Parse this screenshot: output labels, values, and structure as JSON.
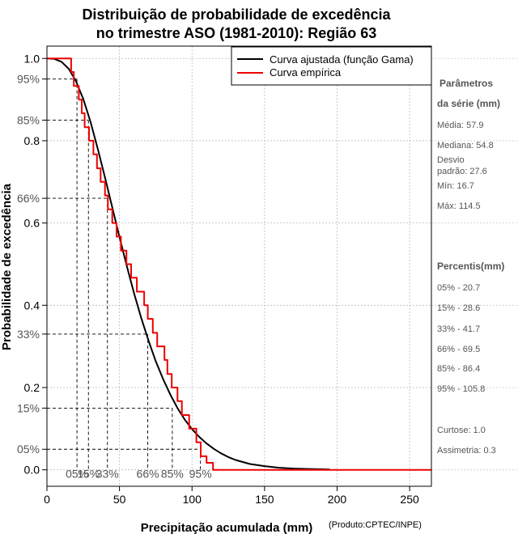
{
  "chart_data": {
    "type": "line",
    "title_line1": "Distribuição de probabilidade de excedência",
    "title_line2": "no trimestre ASO (1981-2010): Região 63",
    "xlabel": "Precipitação acumulada (mm)",
    "ylabel": "Probabilidade de excedência",
    "credit": "(Produto:CPTEC/INPE)",
    "xlim": [
      0,
      265
    ],
    "ylim": [
      -0.04,
      1.03
    ],
    "x_ticks": [
      0,
      50,
      100,
      150,
      200,
      250
    ],
    "x_tick_labels": [
      "0",
      "50",
      "100",
      "150",
      "200",
      "250"
    ],
    "y_ticks": [
      0.0,
      0.2,
      0.4,
      0.6,
      0.8,
      1.0
    ],
    "y_tick_labels": [
      "0.0",
      "0.2",
      "0.4",
      "0.6",
      "0.8",
      "1.0"
    ],
    "pct_levels": [
      {
        "p": 0.95,
        "label": "95%",
        "x": 20.7,
        "xlabel": "05%"
      },
      {
        "p": 0.85,
        "label": "85%",
        "x": 28.6,
        "xlabel": "15%"
      },
      {
        "p": 0.66,
        "label": "66%",
        "x": 41.7,
        "xlabel": "33%"
      },
      {
        "p": 0.33,
        "label": "33%",
        "x": 69.5,
        "xlabel": "66%"
      },
      {
        "p": 0.15,
        "label": "15%",
        "x": 86.4,
        "xlabel": "85%"
      },
      {
        "p": 0.05,
        "label": "05%",
        "x": 105.8,
        "xlabel": "95%"
      }
    ],
    "legend": [
      {
        "name": "Curva ajustada (função Gama)",
        "color": "#000000"
      },
      {
        "name": "Curva empírica",
        "color": "#ee0000"
      }
    ],
    "series": [
      {
        "name": "Curva ajustada (função Gama)",
        "color": "#000000",
        "x": [
          0,
          5,
          10,
          15,
          20,
          25,
          30,
          35,
          40,
          45,
          50,
          55,
          60,
          65,
          70,
          75,
          80,
          85,
          90,
          95,
          100,
          105,
          110,
          115,
          120,
          125,
          130,
          140,
          150,
          160,
          170,
          180,
          195
        ],
        "y": [
          1.0,
          0.999,
          0.992,
          0.975,
          0.945,
          0.902,
          0.846,
          0.781,
          0.711,
          0.638,
          0.566,
          0.496,
          0.43,
          0.369,
          0.314,
          0.264,
          0.221,
          0.183,
          0.15,
          0.122,
          0.099,
          0.08,
          0.064,
          0.051,
          0.04,
          0.031,
          0.024,
          0.014,
          0.009,
          0.005,
          0.003,
          0.002,
          0.001
        ]
      },
      {
        "name": "Curva empírica",
        "color": "#ee0000",
        "x": [
          0,
          16.7,
          16.7,
          18.5,
          18.5,
          22,
          22,
          24,
          24,
          26,
          26,
          29,
          29,
          32,
          32,
          34.5,
          34.5,
          37,
          37,
          40,
          40,
          42,
          42,
          45,
          45,
          48,
          48,
          51,
          51,
          54.8,
          54.8,
          58,
          58,
          62,
          62,
          67,
          67,
          69.5,
          69.5,
          73,
          73,
          76,
          76,
          81,
          81,
          83,
          83,
          86,
          86,
          90,
          90,
          93,
          93,
          98,
          98,
          103,
          103,
          106,
          106,
          110,
          110,
          114.5,
          114.5,
          265
        ],
        "y": [
          1.0,
          1.0,
          0.967,
          0.967,
          0.933,
          0.933,
          0.9,
          0.9,
          0.867,
          0.867,
          0.833,
          0.833,
          0.8,
          0.8,
          0.767,
          0.767,
          0.733,
          0.733,
          0.7,
          0.7,
          0.667,
          0.667,
          0.633,
          0.633,
          0.6,
          0.6,
          0.567,
          0.567,
          0.533,
          0.533,
          0.5,
          0.5,
          0.467,
          0.467,
          0.433,
          0.433,
          0.4,
          0.4,
          0.367,
          0.367,
          0.333,
          0.333,
          0.3,
          0.3,
          0.267,
          0.267,
          0.233,
          0.233,
          0.2,
          0.2,
          0.167,
          0.167,
          0.133,
          0.133,
          0.1,
          0.1,
          0.067,
          0.067,
          0.033,
          0.033,
          0.017,
          0.017,
          0.0,
          0.0
        ]
      }
    ]
  },
  "side_panel": {
    "params_head_line1": "Parâmetros",
    "params_head_line2": "da série (mm)",
    "media": "Média: 57.9",
    "mediana": "Mediana: 54.8",
    "desvio_line1": "Desvio",
    "desvio_line2": "padrão: 27.6",
    "min": "Mín: 16.7",
    "max": "Máx: 114.5",
    "percentis_head": "Percentis(mm)",
    "p05": "05% - 20.7",
    "p15": "15% - 28.6",
    "p33": "33% - 41.7",
    "p66": "66% - 69.5",
    "p85": "85% - 86.4",
    "p95": "95% - 105.8",
    "curtose": "Curtose: 1.0",
    "assimetria": "Assimetria: 0.3"
  }
}
